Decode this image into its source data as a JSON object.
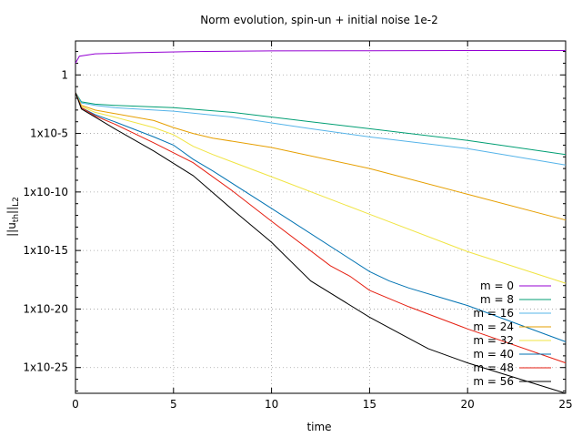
{
  "chart_data": {
    "type": "line",
    "title": "Norm evolution, spin-un + initial noise 1e-2",
    "xlabel": "time",
    "ylabel": {
      "base": "||u",
      "sub": "th",
      "mid": "||",
      "sub2": "L2"
    },
    "x_scale": "linear",
    "y_scale": "log",
    "xlim": [
      0,
      25
    ],
    "ylim_exponent": [
      -27.2,
      2.9
    ],
    "grid": true,
    "legend_position": "bottom-right",
    "x_ticks": [
      "0",
      "5",
      "10",
      "15",
      "20",
      "25"
    ],
    "y_ticks": [
      {
        "exp": 0,
        "label": "1"
      },
      {
        "exp": -5,
        "label": "1x10-5"
      },
      {
        "exp": -10,
        "label": "1x10-10"
      },
      {
        "exp": -15,
        "label": "1x10-15"
      },
      {
        "exp": -20,
        "label": "1x10-20"
      },
      {
        "exp": -25,
        "label": "1x10-25"
      }
    ],
    "series_note": "x is time, y is log10 of the norm",
    "series": [
      {
        "name": "m = 0",
        "color": "#9400d3",
        "x": [
          0,
          0.2,
          1,
          3,
          6,
          10,
          15,
          20,
          25
        ],
        "y": [
          1.0,
          1.6,
          1.8,
          1.9,
          2.0,
          2.05,
          2.07,
          2.08,
          2.08
        ]
      },
      {
        "name": "m = 8",
        "color": "#009e73",
        "x": [
          0,
          0.3,
          1,
          2,
          5,
          8,
          12,
          15,
          20,
          25
        ],
        "y": [
          -1.5,
          -2.3,
          -2.5,
          -2.6,
          -2.8,
          -3.2,
          -4.0,
          -4.6,
          -5.6,
          -6.8
        ]
      },
      {
        "name": "m = 16",
        "color": "#56b4e9",
        "x": [
          0,
          0.3,
          1,
          2,
          5,
          8,
          12,
          15,
          20,
          25
        ],
        "y": [
          -1.5,
          -2.4,
          -2.6,
          -2.8,
          -3.1,
          -3.6,
          -4.6,
          -5.3,
          -6.3,
          -7.7
        ]
      },
      {
        "name": "m = 24",
        "color": "#e69f00",
        "x": [
          0,
          0.3,
          1,
          2,
          4,
          5,
          6,
          7,
          10,
          15,
          20,
          25
        ],
        "y": [
          -1.5,
          -2.6,
          -3.0,
          -3.3,
          -3.9,
          -4.5,
          -5.0,
          -5.4,
          -6.2,
          -8.0,
          -10.2,
          -12.4
        ]
      },
      {
        "name": "m = 32",
        "color": "#f0e442",
        "x": [
          0,
          0.3,
          1,
          2,
          4,
          5,
          6,
          7,
          10,
          15,
          20,
          25
        ],
        "y": [
          -1.5,
          -2.7,
          -3.2,
          -3.6,
          -4.5,
          -5.1,
          -6.1,
          -6.8,
          -8.7,
          -11.9,
          -15.1,
          -17.8
        ]
      },
      {
        "name": "m = 40",
        "color": "#0072b2",
        "x": [
          0,
          0.3,
          1,
          2,
          4,
          5,
          6,
          7,
          10,
          15,
          16,
          17,
          20,
          25
        ],
        "y": [
          -1.5,
          -2.8,
          -3.4,
          -4.0,
          -5.3,
          -6.0,
          -7.2,
          -8.2,
          -11.4,
          -16.8,
          -17.6,
          -18.2,
          -19.7,
          -22.8
        ]
      },
      {
        "name": "m = 48",
        "color": "#e51e10",
        "x": [
          0,
          0.3,
          1,
          2,
          4,
          6,
          8,
          10,
          13,
          14,
          15,
          17,
          20,
          25
        ],
        "y": [
          -1.5,
          -2.8,
          -3.5,
          -4.2,
          -5.8,
          -7.5,
          -9.9,
          -12.5,
          -16.3,
          -17.2,
          -18.4,
          -19.8,
          -21.7,
          -24.6
        ]
      },
      {
        "name": "m = 56",
        "color": "#000000",
        "x": [
          0,
          0.3,
          1,
          2,
          4,
          6,
          8,
          10,
          12,
          15,
          17,
          18,
          20,
          25
        ],
        "y": [
          -1.5,
          -2.9,
          -3.6,
          -4.6,
          -6.5,
          -8.6,
          -11.5,
          -14.3,
          -17.6,
          -20.7,
          -22.5,
          -23.4,
          -24.6,
          -27.2
        ]
      }
    ]
  }
}
